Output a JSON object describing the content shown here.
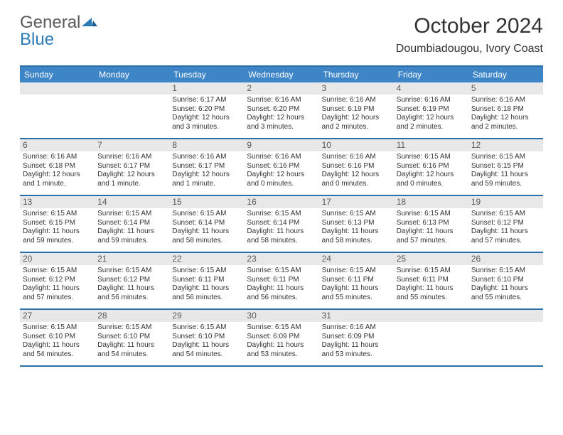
{
  "logo": {
    "part1": "General",
    "part2": "Blue"
  },
  "title": "October 2024",
  "location": "Doumbiadougou, Ivory Coast",
  "colors": {
    "header_bg": "#3d85c6",
    "header_text": "#ffffff",
    "border": "#2a6fa8",
    "daynum_bg": "#e8e8e8",
    "daynum_text": "#5a5a5a",
    "body_text": "#333333",
    "logo_gray": "#5a5a5a",
    "logo_blue": "#2a7ab8"
  },
  "day_names": [
    "Sunday",
    "Monday",
    "Tuesday",
    "Wednesday",
    "Thursday",
    "Friday",
    "Saturday"
  ],
  "weeks": [
    [
      null,
      null,
      {
        "n": "1",
        "sr": "Sunrise: 6:17 AM",
        "ss": "Sunset: 6:20 PM",
        "d1": "Daylight: 12 hours",
        "d2": "and 3 minutes."
      },
      {
        "n": "2",
        "sr": "Sunrise: 6:16 AM",
        "ss": "Sunset: 6:20 PM",
        "d1": "Daylight: 12 hours",
        "d2": "and 3 minutes."
      },
      {
        "n": "3",
        "sr": "Sunrise: 6:16 AM",
        "ss": "Sunset: 6:19 PM",
        "d1": "Daylight: 12 hours",
        "d2": "and 2 minutes."
      },
      {
        "n": "4",
        "sr": "Sunrise: 6:16 AM",
        "ss": "Sunset: 6:19 PM",
        "d1": "Daylight: 12 hours",
        "d2": "and 2 minutes."
      },
      {
        "n": "5",
        "sr": "Sunrise: 6:16 AM",
        "ss": "Sunset: 6:18 PM",
        "d1": "Daylight: 12 hours",
        "d2": "and 2 minutes."
      }
    ],
    [
      {
        "n": "6",
        "sr": "Sunrise: 6:16 AM",
        "ss": "Sunset: 6:18 PM",
        "d1": "Daylight: 12 hours",
        "d2": "and 1 minute."
      },
      {
        "n": "7",
        "sr": "Sunrise: 6:16 AM",
        "ss": "Sunset: 6:17 PM",
        "d1": "Daylight: 12 hours",
        "d2": "and 1 minute."
      },
      {
        "n": "8",
        "sr": "Sunrise: 6:16 AM",
        "ss": "Sunset: 6:17 PM",
        "d1": "Daylight: 12 hours",
        "d2": "and 1 minute."
      },
      {
        "n": "9",
        "sr": "Sunrise: 6:16 AM",
        "ss": "Sunset: 6:16 PM",
        "d1": "Daylight: 12 hours",
        "d2": "and 0 minutes."
      },
      {
        "n": "10",
        "sr": "Sunrise: 6:16 AM",
        "ss": "Sunset: 6:16 PM",
        "d1": "Daylight: 12 hours",
        "d2": "and 0 minutes."
      },
      {
        "n": "11",
        "sr": "Sunrise: 6:15 AM",
        "ss": "Sunset: 6:16 PM",
        "d1": "Daylight: 12 hours",
        "d2": "and 0 minutes."
      },
      {
        "n": "12",
        "sr": "Sunrise: 6:15 AM",
        "ss": "Sunset: 6:15 PM",
        "d1": "Daylight: 11 hours",
        "d2": "and 59 minutes."
      }
    ],
    [
      {
        "n": "13",
        "sr": "Sunrise: 6:15 AM",
        "ss": "Sunset: 6:15 PM",
        "d1": "Daylight: 11 hours",
        "d2": "and 59 minutes."
      },
      {
        "n": "14",
        "sr": "Sunrise: 6:15 AM",
        "ss": "Sunset: 6:14 PM",
        "d1": "Daylight: 11 hours",
        "d2": "and 59 minutes."
      },
      {
        "n": "15",
        "sr": "Sunrise: 6:15 AM",
        "ss": "Sunset: 6:14 PM",
        "d1": "Daylight: 11 hours",
        "d2": "and 58 minutes."
      },
      {
        "n": "16",
        "sr": "Sunrise: 6:15 AM",
        "ss": "Sunset: 6:14 PM",
        "d1": "Daylight: 11 hours",
        "d2": "and 58 minutes."
      },
      {
        "n": "17",
        "sr": "Sunrise: 6:15 AM",
        "ss": "Sunset: 6:13 PM",
        "d1": "Daylight: 11 hours",
        "d2": "and 58 minutes."
      },
      {
        "n": "18",
        "sr": "Sunrise: 6:15 AM",
        "ss": "Sunset: 6:13 PM",
        "d1": "Daylight: 11 hours",
        "d2": "and 57 minutes."
      },
      {
        "n": "19",
        "sr": "Sunrise: 6:15 AM",
        "ss": "Sunset: 6:12 PM",
        "d1": "Daylight: 11 hours",
        "d2": "and 57 minutes."
      }
    ],
    [
      {
        "n": "20",
        "sr": "Sunrise: 6:15 AM",
        "ss": "Sunset: 6:12 PM",
        "d1": "Daylight: 11 hours",
        "d2": "and 57 minutes."
      },
      {
        "n": "21",
        "sr": "Sunrise: 6:15 AM",
        "ss": "Sunset: 6:12 PM",
        "d1": "Daylight: 11 hours",
        "d2": "and 56 minutes."
      },
      {
        "n": "22",
        "sr": "Sunrise: 6:15 AM",
        "ss": "Sunset: 6:11 PM",
        "d1": "Daylight: 11 hours",
        "d2": "and 56 minutes."
      },
      {
        "n": "23",
        "sr": "Sunrise: 6:15 AM",
        "ss": "Sunset: 6:11 PM",
        "d1": "Daylight: 11 hours",
        "d2": "and 56 minutes."
      },
      {
        "n": "24",
        "sr": "Sunrise: 6:15 AM",
        "ss": "Sunset: 6:11 PM",
        "d1": "Daylight: 11 hours",
        "d2": "and 55 minutes."
      },
      {
        "n": "25",
        "sr": "Sunrise: 6:15 AM",
        "ss": "Sunset: 6:11 PM",
        "d1": "Daylight: 11 hours",
        "d2": "and 55 minutes."
      },
      {
        "n": "26",
        "sr": "Sunrise: 6:15 AM",
        "ss": "Sunset: 6:10 PM",
        "d1": "Daylight: 11 hours",
        "d2": "and 55 minutes."
      }
    ],
    [
      {
        "n": "27",
        "sr": "Sunrise: 6:15 AM",
        "ss": "Sunset: 6:10 PM",
        "d1": "Daylight: 11 hours",
        "d2": "and 54 minutes."
      },
      {
        "n": "28",
        "sr": "Sunrise: 6:15 AM",
        "ss": "Sunset: 6:10 PM",
        "d1": "Daylight: 11 hours",
        "d2": "and 54 minutes."
      },
      {
        "n": "29",
        "sr": "Sunrise: 6:15 AM",
        "ss": "Sunset: 6:10 PM",
        "d1": "Daylight: 11 hours",
        "d2": "and 54 minutes."
      },
      {
        "n": "30",
        "sr": "Sunrise: 6:15 AM",
        "ss": "Sunset: 6:09 PM",
        "d1": "Daylight: 11 hours",
        "d2": "and 53 minutes."
      },
      {
        "n": "31",
        "sr": "Sunrise: 6:16 AM",
        "ss": "Sunset: 6:09 PM",
        "d1": "Daylight: 11 hours",
        "d2": "and 53 minutes."
      },
      null,
      null
    ]
  ]
}
